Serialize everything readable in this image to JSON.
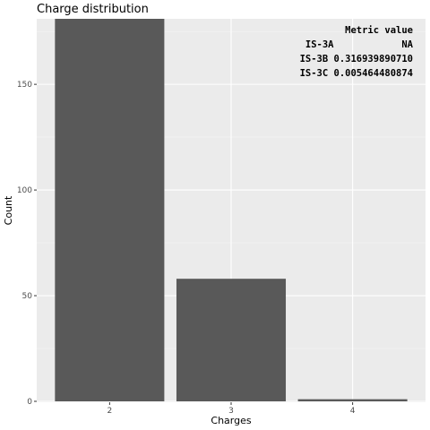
{
  "chart_data": {
    "type": "bar",
    "title": "Charge distribution",
    "xlabel": "Charges",
    "ylabel": "Count",
    "categories": [
      "2",
      "3",
      "4"
    ],
    "values": [
      185,
      58,
      1
    ],
    "ylim": [
      0,
      181
    ],
    "yticks": [
      0,
      50,
      100,
      150
    ],
    "grid": true,
    "colors": {
      "panel": "#ebebeb",
      "grid_major": "#ffffff",
      "grid_minor": "#f5f5f5",
      "bar": "#595959"
    },
    "table": {
      "header": "Metric value",
      "rows": [
        "IS-3A            NA",
        "IS-3B 0.316939890710",
        "IS-3C 0.005464480874"
      ]
    }
  }
}
